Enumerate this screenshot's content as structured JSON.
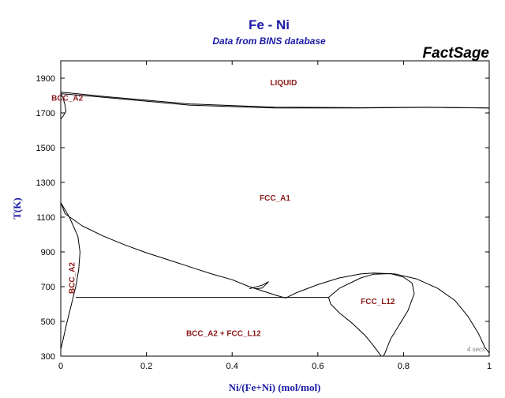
{
  "chart_data": {
    "type": "line",
    "title": "Fe - Ni",
    "subtitle": "Data from BINS database",
    "brand": "FactSage",
    "xlabel": "Ni/(Fe+Ni) (mol/mol)",
    "ylabel": "T(K)",
    "xlim": [
      0,
      1
    ],
    "ylim": [
      300,
      2000
    ],
    "xticks": [
      0,
      0.2,
      0.4,
      0.6,
      0.8,
      1
    ],
    "yticks": [
      300,
      500,
      700,
      900,
      1100,
      1300,
      1500,
      1700,
      1900
    ],
    "grid": false,
    "legend": "none",
    "line_color": "#000000",
    "note": "4 secs",
    "regions": [
      {
        "label": "LIQUID",
        "x": 0.52,
        "y": 1860,
        "vertical": false
      },
      {
        "label": "BCC_A2",
        "x": 0.015,
        "y": 1770,
        "vertical": false
      },
      {
        "label": "FCC_A1",
        "x": 0.5,
        "y": 1195,
        "vertical": false
      },
      {
        "label": "BCC_A2",
        "x": 0.032,
        "y": 750,
        "vertical": true
      },
      {
        "label": "FCC_L12",
        "x": 0.74,
        "y": 600,
        "vertical": false
      },
      {
        "label": "BCC_A2 + FCC_L12",
        "x": 0.38,
        "y": 415,
        "vertical": false
      }
    ],
    "series": [
      {
        "values": [
          [
            0,
            1811
          ],
          [
            0.1,
            1790
          ],
          [
            0.3,
            1745
          ],
          [
            0.5,
            1728
          ],
          [
            0.7,
            1728
          ],
          [
            0.85,
            1732
          ],
          [
            1.0,
            1728
          ]
        ]
      },
      {
        "values": [
          [
            0,
            1820
          ],
          [
            0.1,
            1795
          ],
          [
            0.3,
            1752
          ],
          [
            0.5,
            1733
          ],
          [
            0.7,
            1730
          ],
          [
            0.85,
            1733
          ],
          [
            1.0,
            1728
          ]
        ]
      },
      {
        "values": [
          [
            0,
            1811
          ],
          [
            0.005,
            1790
          ],
          [
            0.01,
            1745
          ],
          [
            0.012,
            1708
          ],
          [
            0.005,
            1680
          ],
          [
            0,
            1665
          ]
        ]
      },
      {
        "values": [
          [
            0,
            1184
          ],
          [
            0.02,
            1100
          ],
          [
            0.04,
            990
          ],
          [
            0.045,
            900
          ],
          [
            0.042,
            800
          ],
          [
            0.035,
            700
          ],
          [
            0.025,
            600
          ],
          [
            0.013,
            480
          ],
          [
            0.004,
            380
          ],
          [
            0,
            340
          ]
        ]
      },
      {
        "values": [
          [
            0,
            1184
          ],
          [
            0.01,
            1120
          ],
          [
            0.05,
            1050
          ],
          [
            0.1,
            990
          ],
          [
            0.15,
            940
          ],
          [
            0.2,
            895
          ],
          [
            0.25,
            855
          ],
          [
            0.3,
            815
          ],
          [
            0.35,
            775
          ],
          [
            0.4,
            740
          ],
          [
            0.44,
            700
          ],
          [
            0.48,
            668
          ],
          [
            0.505,
            648
          ],
          [
            0.525,
            635
          ]
        ]
      },
      {
        "values": [
          [
            0.44,
            688
          ],
          [
            0.47,
            708
          ],
          [
            0.485,
            728
          ],
          [
            0.47,
            692
          ],
          [
            0.455,
            688
          ]
        ]
      },
      {
        "values": [
          [
            0.525,
            635
          ],
          [
            0.55,
            665
          ],
          [
            0.6,
            712
          ],
          [
            0.65,
            750
          ],
          [
            0.7,
            773
          ],
          [
            0.73,
            778
          ],
          [
            0.78,
            773
          ],
          [
            0.83,
            745
          ],
          [
            0.88,
            690
          ],
          [
            0.92,
            620
          ],
          [
            0.95,
            530
          ],
          [
            0.975,
            430
          ],
          [
            0.99,
            350
          ],
          [
            1.0,
            318
          ]
        ]
      },
      {
        "values": [
          [
            0.035,
            638
          ],
          [
            0.625,
            638
          ]
        ]
      },
      {
        "values": [
          [
            0.625,
            638
          ],
          [
            0.65,
            690
          ],
          [
            0.7,
            750
          ],
          [
            0.73,
            772
          ],
          [
            0.77,
            775
          ],
          [
            0.8,
            755
          ],
          [
            0.82,
            720
          ],
          [
            0.825,
            660
          ],
          [
            0.81,
            560
          ],
          [
            0.79,
            480
          ],
          [
            0.77,
            400
          ],
          [
            0.757,
            320
          ],
          [
            0.753,
            300
          ]
        ]
      },
      {
        "values": [
          [
            0.625,
            638
          ],
          [
            0.63,
            600
          ],
          [
            0.65,
            550
          ],
          [
            0.68,
            490
          ],
          [
            0.71,
            420
          ],
          [
            0.73,
            360
          ],
          [
            0.745,
            310
          ],
          [
            0.748,
            300
          ]
        ]
      }
    ]
  }
}
